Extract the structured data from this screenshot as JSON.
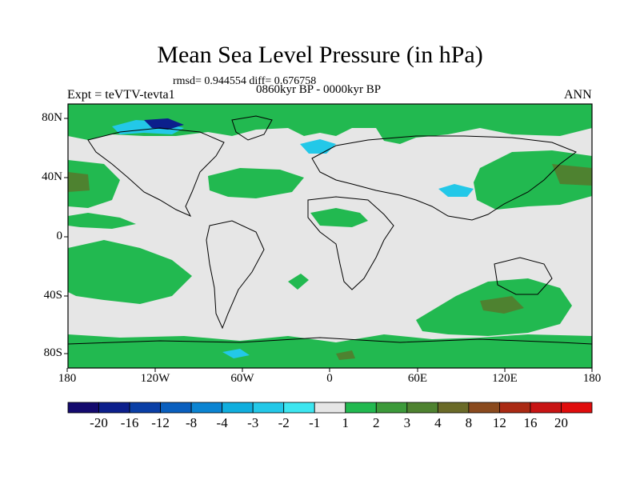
{
  "title": "Mean Sea Level Pressure (in hPa)",
  "stats": "rmsd= 0.944554  diff= 0.676758",
  "period": "0860kyr BP - 0000kyr BP",
  "experiment": "Expt = teVTV-tevta1",
  "season": "ANN",
  "lat_ticks": [
    "80N",
    "40N",
    "0",
    "40S",
    "80S"
  ],
  "lon_ticks": [
    "180",
    "120W",
    "60W",
    "0",
    "60E",
    "120E",
    "180"
  ],
  "colorbar": {
    "labels": [
      "-20",
      "-16",
      "-12",
      "-8",
      "-4",
      "-3",
      "-2",
      "-1",
      "1",
      "2",
      "3",
      "4",
      "8",
      "12",
      "16",
      "20"
    ],
    "colors": [
      "#140a6e",
      "#0c1f8c",
      "#0a3fa6",
      "#0a5fbe",
      "#0b84d2",
      "#10aede",
      "#23c8e8",
      "#3de6f0",
      "#e6e6e6",
      "#22b950",
      "#3c9a3a",
      "#4e8230",
      "#6a6a28",
      "#8a4a1e",
      "#aa2a14",
      "#c81414",
      "#e00c0c"
    ]
  },
  "colors": {
    "neutral": "#e6e6e6",
    "pos_weak": "#22b950",
    "pos_mid": "#3c9a3a",
    "pos_strong": "#4e8230",
    "neg_weak": "#23c8e8",
    "neg_strong": "#0c1f8c"
  }
}
